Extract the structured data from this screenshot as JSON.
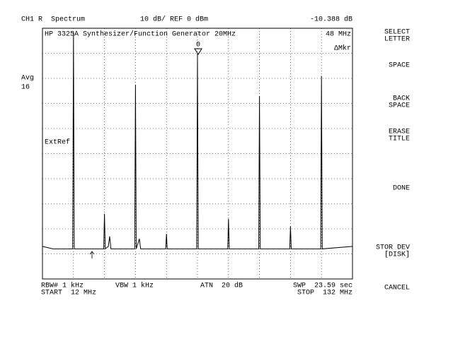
{
  "header": {
    "channel": "CH1 R  Spectrum",
    "scale": "10 dB/ REF 0 dBm",
    "readout": "-10.388 dB"
  },
  "panel": {
    "title": "HP 3325A Synthesizer/Function Generator 20MHz",
    "marker_freq": "48 MHz",
    "marker_mode": "ΔMkr",
    "marker_label": "0",
    "avg_label": "Avg",
    "avg_count": "16",
    "ext_ref": "ExtRef"
  },
  "footer": {
    "rbw": "RBW# 1 kHz",
    "vbw": "VBW 1 kHz",
    "atn": "ATN  20 dB",
    "swp": "SWP  23.59 sec",
    "start": "START  12 MHz",
    "stop": "STOP  132 MHz"
  },
  "softkeys": [
    [
      "SELECT",
      "LETTER"
    ],
    [
      "SPACE"
    ],
    [
      "BACK",
      "SPACE"
    ],
    [
      "ERASE",
      "TITLE"
    ],
    [
      "DONE"
    ],
    [
      "STOR DEV",
      "[DISK]"
    ],
    [
      "CANCEL"
    ]
  ],
  "chart_data": {
    "type": "line",
    "x": [
      12,
      16,
      23.7,
      24,
      24.3,
      30,
      35.7,
      36,
      36.3,
      37.5,
      38,
      38.5,
      47.7,
      48,
      48.3,
      49.5,
      50,
      59.7,
      60,
      60.3,
      71.7,
      72,
      72.3,
      83.7,
      84,
      84.3,
      95.7,
      96,
      96.3,
      107.7,
      108,
      108.3,
      119.7,
      120,
      120.3,
      132
    ],
    "values": [
      -87,
      -88,
      -88,
      -1.5,
      -88,
      -88,
      -88,
      -74,
      -88,
      -87,
      -83,
      -88,
      -88,
      -22.5,
      -88,
      -84,
      -88,
      -88,
      -82,
      -88,
      -88,
      -10.4,
      -88,
      -88,
      -76,
      -88,
      -88,
      -27,
      -88,
      -88,
      -79,
      -88,
      -88,
      -19,
      -88,
      -87
    ],
    "color": "#000000",
    "xlim": [
      12,
      132
    ],
    "ylim": [
      -100,
      0
    ]
  }
}
